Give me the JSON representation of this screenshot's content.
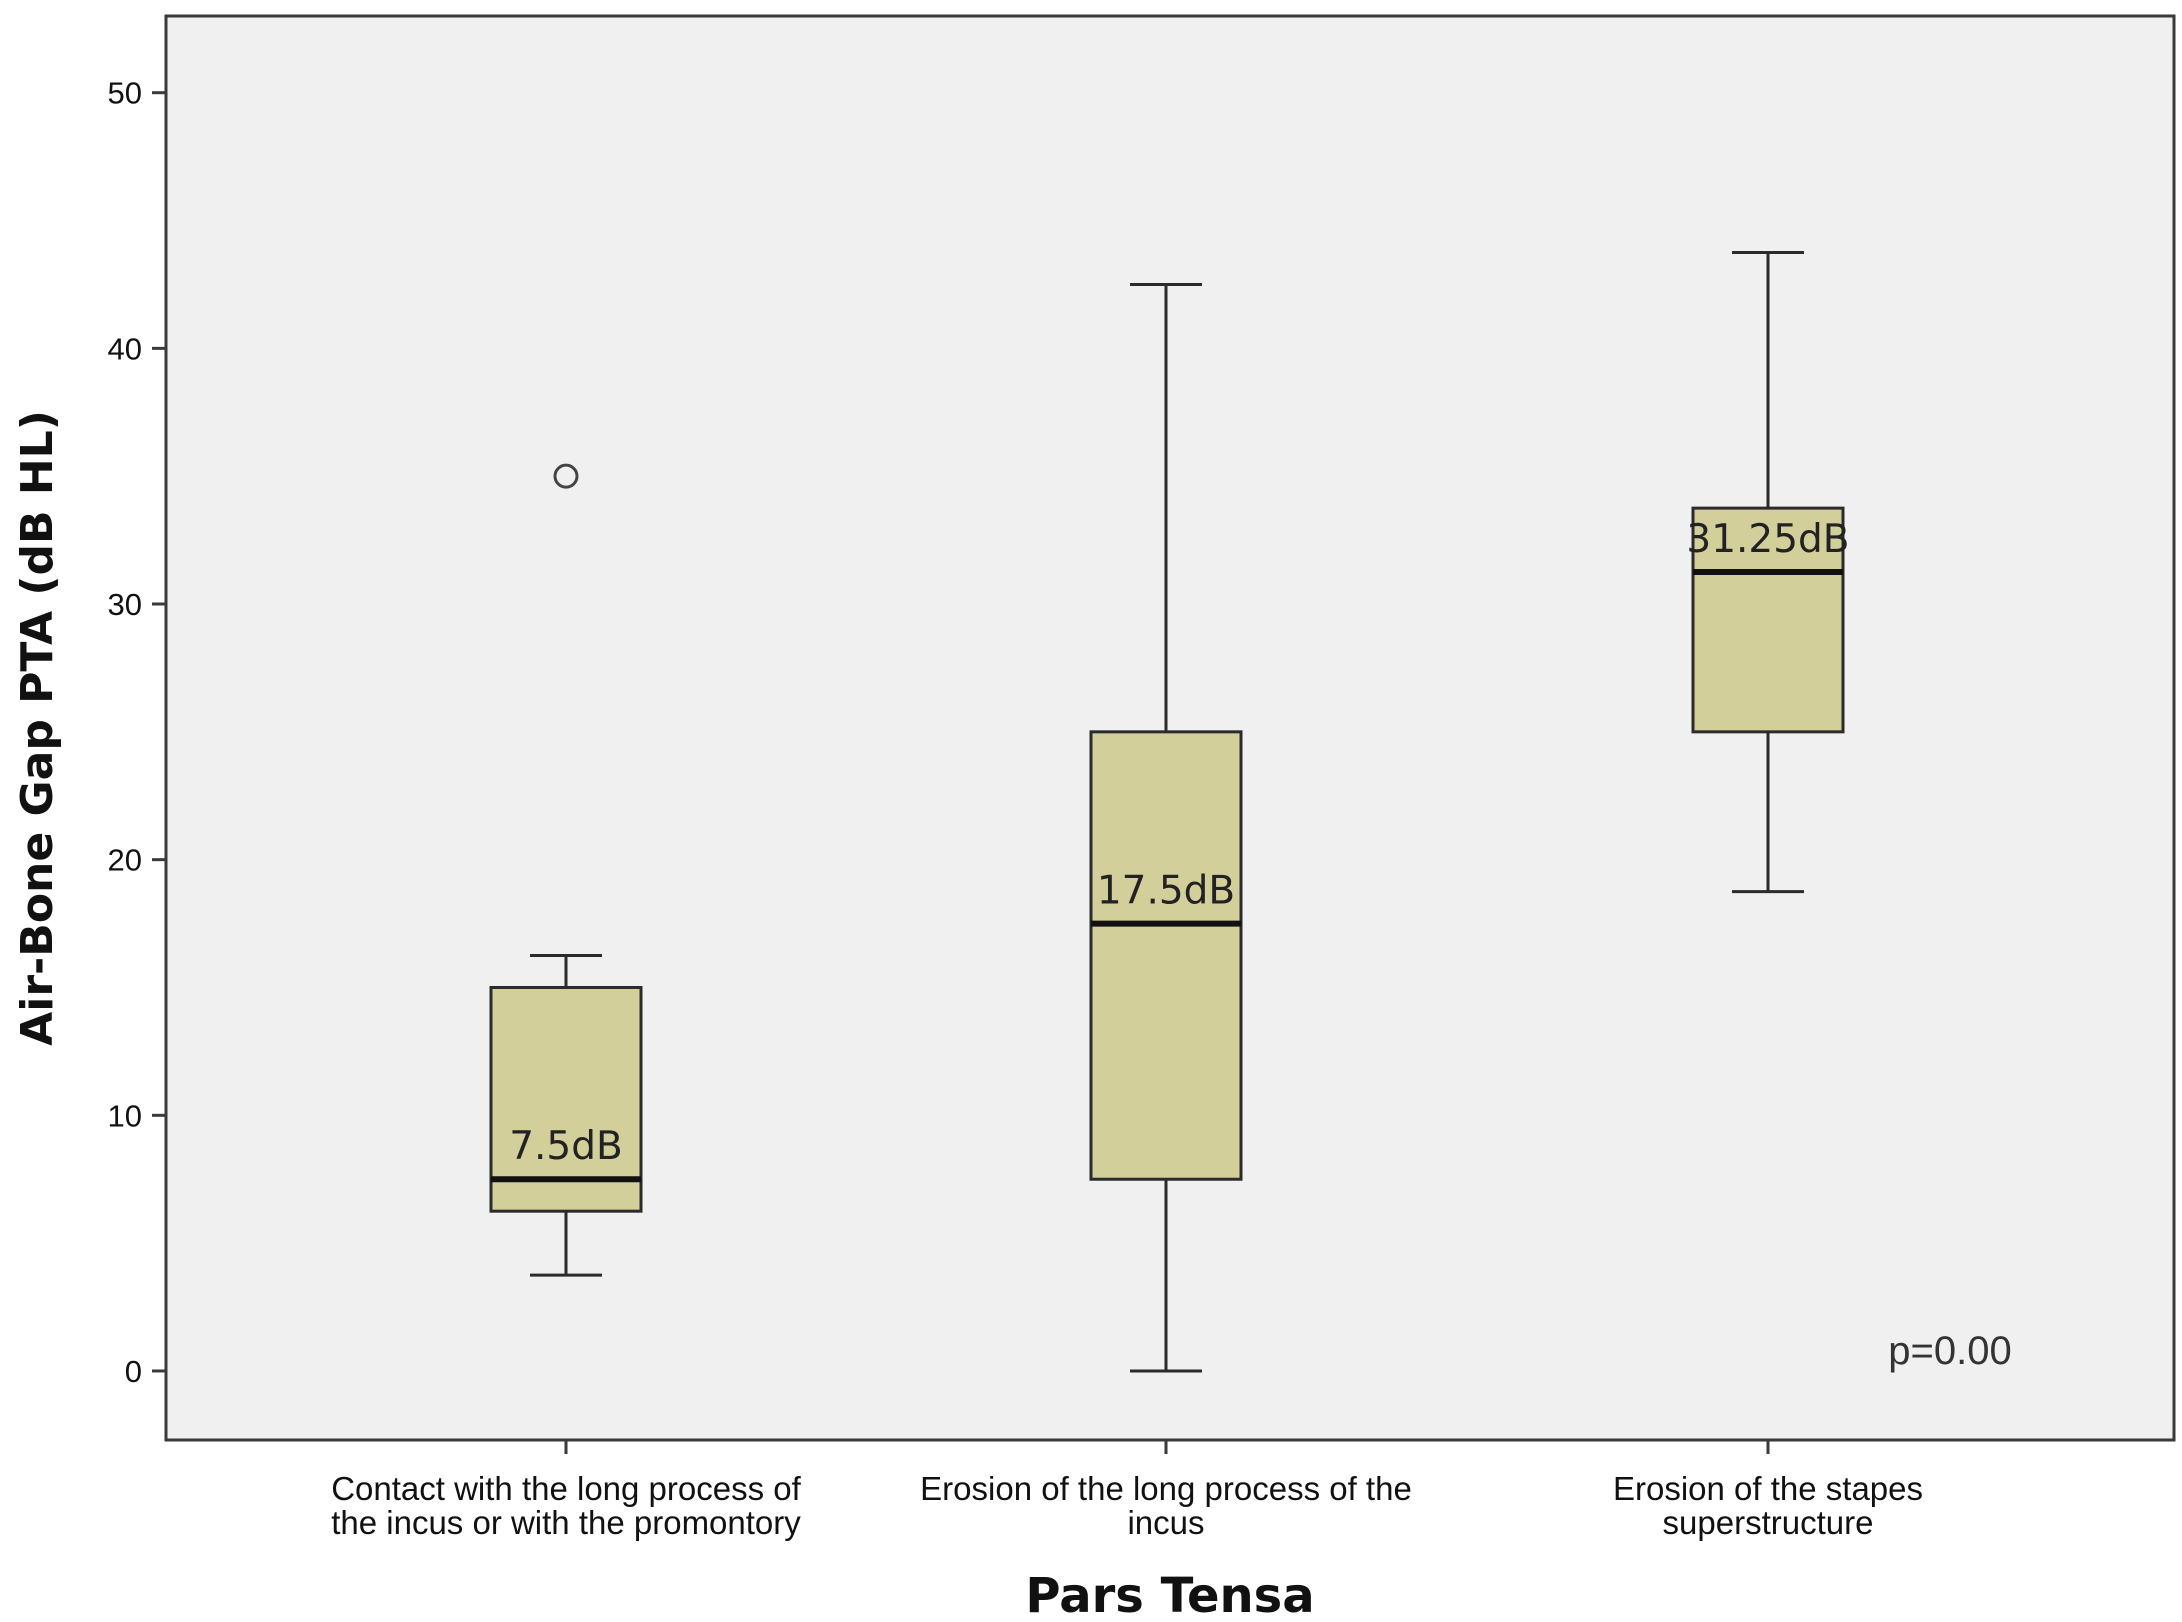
{
  "chart_data": {
    "type": "box",
    "title": "",
    "xlabel": "Pars Tensa",
    "ylabel": "Air-Bone Gap PTA (dB HL)",
    "ylim": [
      -2.7,
      53
    ],
    "yticks": [
      0,
      10,
      20,
      30,
      40,
      50
    ],
    "grid": false,
    "categories": [
      [
        "Contact with the long process of",
        "the incus or with the promontory"
      ],
      [
        "Erosion of the long process of the",
        "incus"
      ],
      [
        "Erosion of the stapes",
        "superstructure"
      ]
    ],
    "boxes": [
      {
        "whisker_low": 3.75,
        "q1": 6.25,
        "median": 7.5,
        "q3": 15,
        "whisker_high": 16.25,
        "outliers": [
          35
        ],
        "median_label": "7.5dB"
      },
      {
        "whisker_low": 0,
        "q1": 7.5,
        "median": 17.5,
        "q3": 25,
        "whisker_high": 42.5,
        "outliers": [],
        "median_label": "17.5dB"
      },
      {
        "whisker_low": 18.75,
        "q1": 25,
        "median": 31.25,
        "q3": 33.75,
        "whisker_high": 43.75,
        "outliers": [],
        "median_label": "31.25dB"
      }
    ],
    "annotations": [
      "p=0.00"
    ],
    "colors": {
      "box_fill": "#d3cf9b",
      "plot_bg": "#f0f0f0",
      "stroke": "#2b2b2b"
    }
  }
}
